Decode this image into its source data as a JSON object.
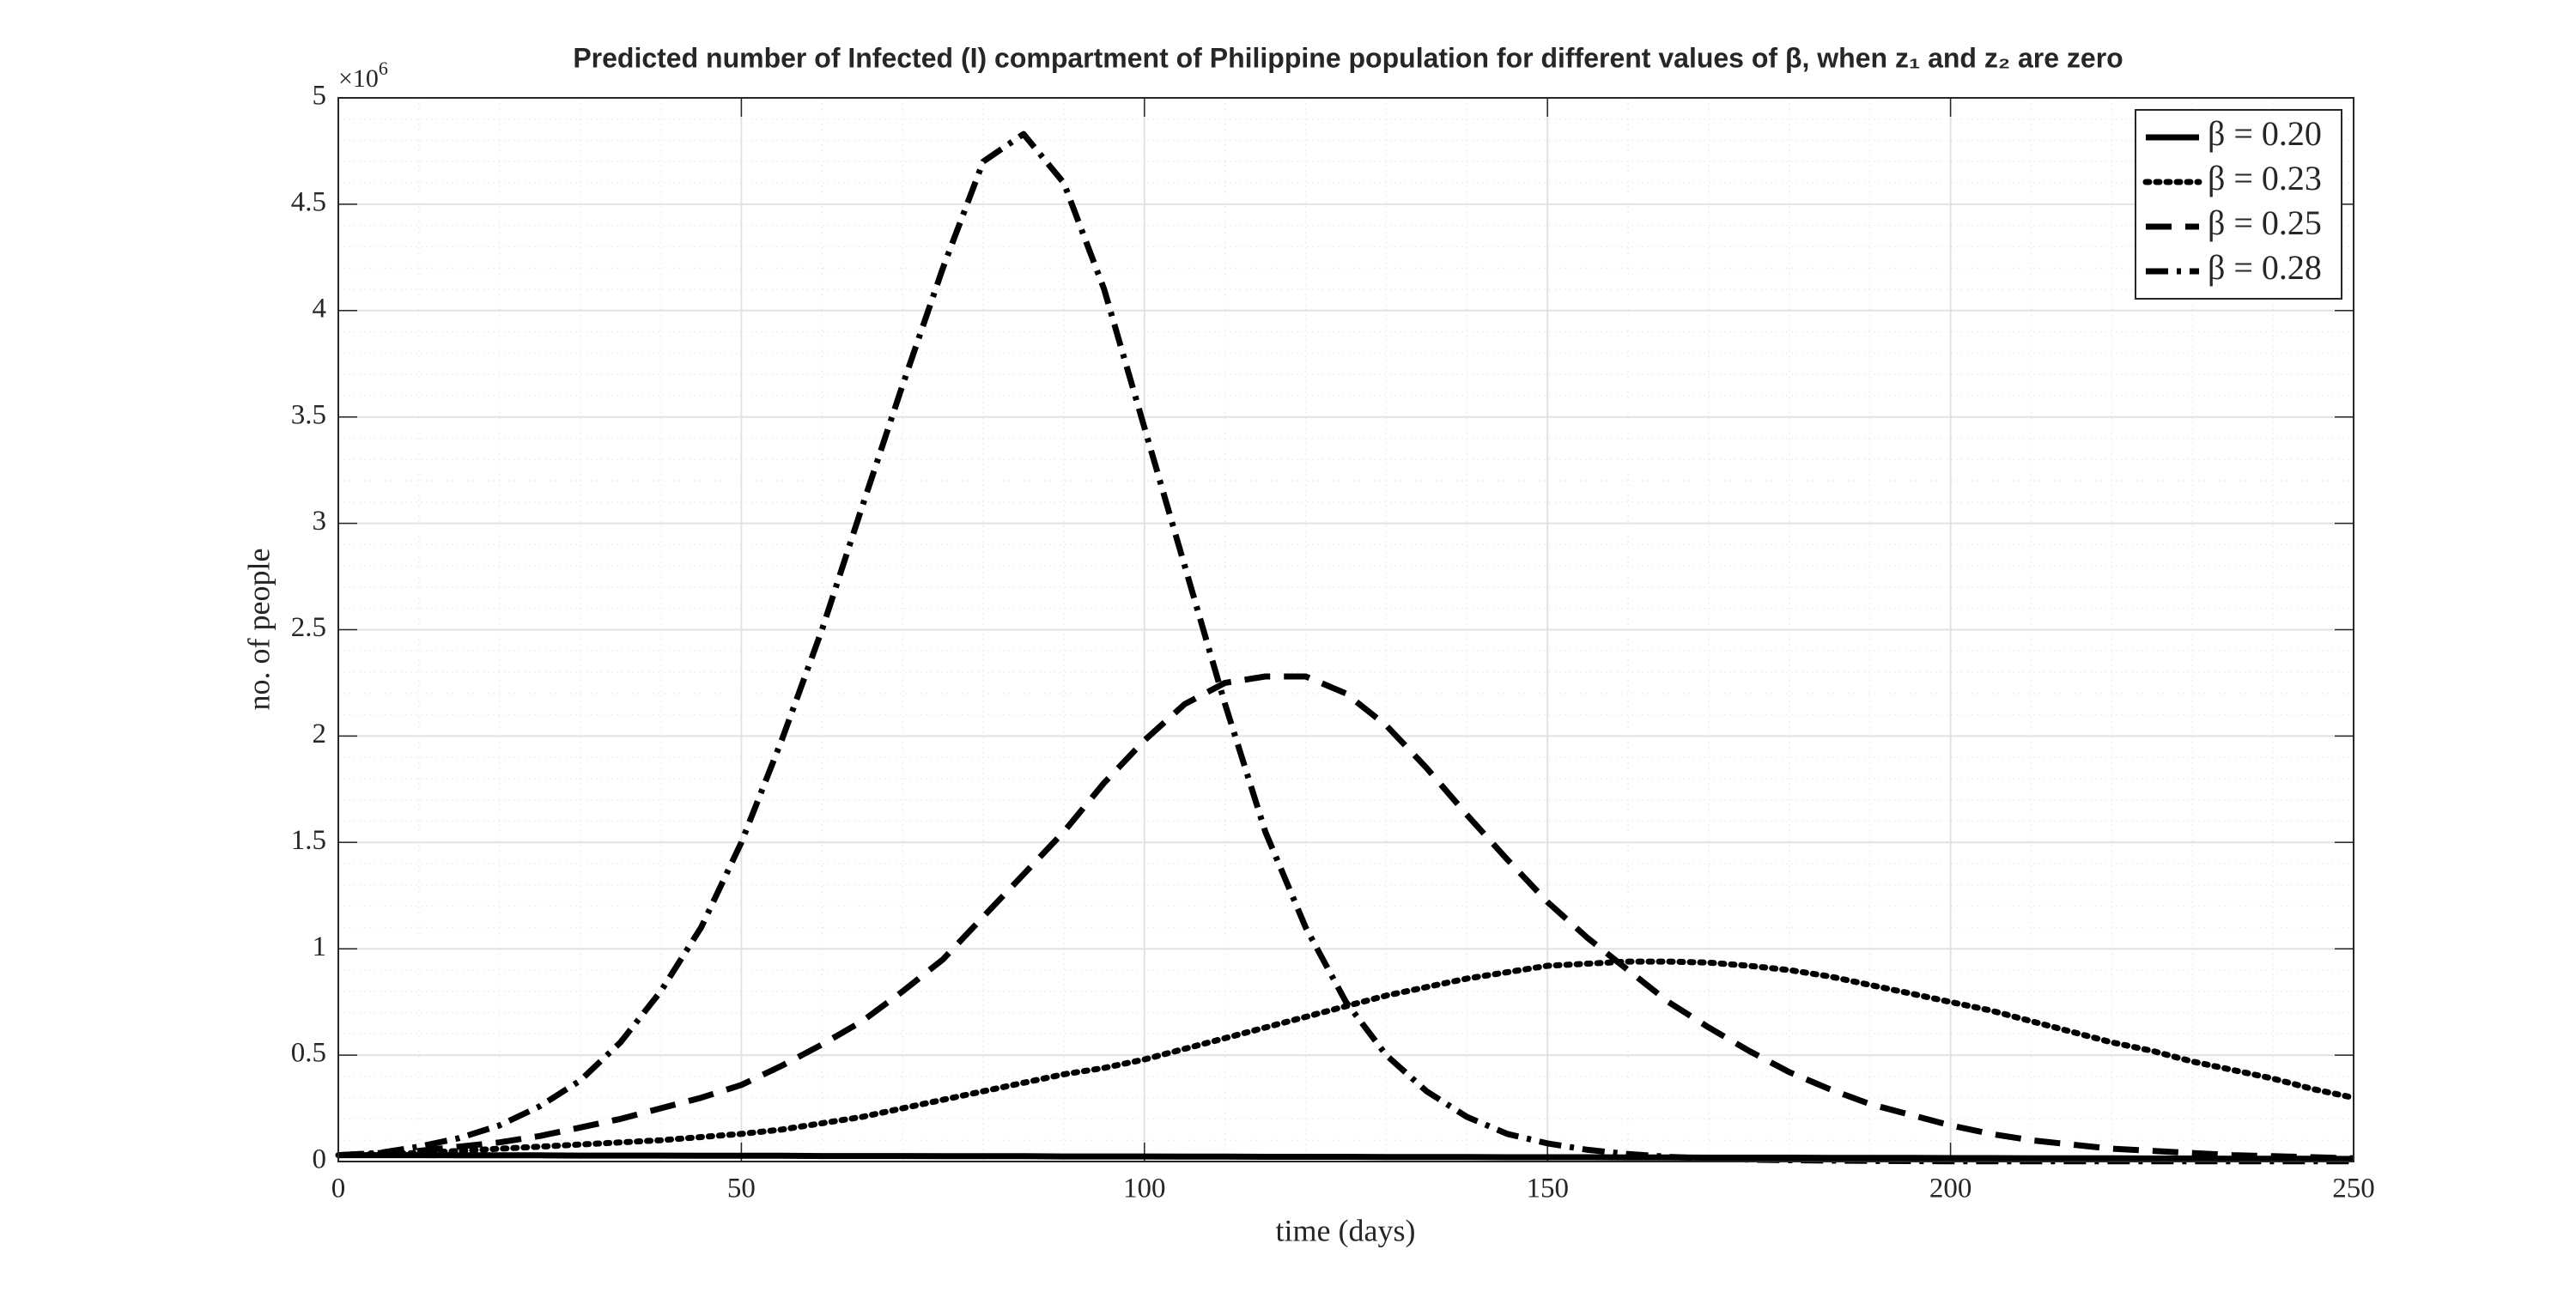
{
  "chart_data": {
    "type": "line",
    "title": "Predicted number of Infected (I) compartment of Philippine population for different values of β, when z₁  and z₂ are zero",
    "x_label": "time (days)",
    "y_label": "no. of people",
    "y_multiplier": {
      "base": "×10",
      "exponent": "6"
    },
    "x": [
      0,
      5,
      10,
      15,
      20,
      25,
      30,
      35,
      40,
      45,
      50,
      55,
      60,
      65,
      70,
      75,
      80,
      85,
      90,
      95,
      100,
      105,
      110,
      115,
      120,
      125,
      130,
      135,
      140,
      145,
      150,
      155,
      160,
      165,
      170,
      175,
      180,
      185,
      190,
      195,
      200,
      205,
      210,
      215,
      220,
      225,
      230,
      235,
      240,
      245,
      250
    ],
    "series": [
      {
        "name": "β = 0.20",
        "color": "#000000",
        "dash": "solid",
        "values": [
          0.03,
          0.03,
          0.03,
          0.029,
          0.029,
          0.029,
          0.028,
          0.028,
          0.028,
          0.027,
          0.027,
          0.027,
          0.026,
          0.026,
          0.026,
          0.025,
          0.025,
          0.025,
          0.024,
          0.024,
          0.024,
          0.023,
          0.023,
          0.022,
          0.022,
          0.022,
          0.021,
          0.021,
          0.021,
          0.02,
          0.02,
          0.02,
          0.019,
          0.019,
          0.018,
          0.018,
          0.018,
          0.017,
          0.017,
          0.017,
          0.016,
          0.016,
          0.015,
          0.015,
          0.015,
          0.014,
          0.014,
          0.013,
          0.013,
          0.013,
          0.012
        ]
      },
      {
        "name": "β = 0.23",
        "color": "#000000",
        "dash": "dotted",
        "values": [
          0.03,
          0.035,
          0.04,
          0.05,
          0.06,
          0.07,
          0.08,
          0.09,
          0.1,
          0.115,
          0.13,
          0.15,
          0.18,
          0.21,
          0.25,
          0.29,
          0.33,
          0.37,
          0.41,
          0.44,
          0.48,
          0.53,
          0.58,
          0.63,
          0.68,
          0.73,
          0.78,
          0.82,
          0.86,
          0.89,
          0.92,
          0.93,
          0.94,
          0.94,
          0.935,
          0.92,
          0.9,
          0.87,
          0.83,
          0.79,
          0.75,
          0.71,
          0.66,
          0.61,
          0.56,
          0.52,
          0.47,
          0.43,
          0.39,
          0.34,
          0.3
        ]
      },
      {
        "name": "β = 0.25",
        "color": "#000000",
        "dash": "dashed",
        "values": [
          0.03,
          0.04,
          0.05,
          0.07,
          0.09,
          0.12,
          0.16,
          0.2,
          0.25,
          0.3,
          0.36,
          0.45,
          0.55,
          0.66,
          0.8,
          0.95,
          1.15,
          1.35,
          1.55,
          1.78,
          1.98,
          2.15,
          2.25,
          2.28,
          2.28,
          2.2,
          2.05,
          1.85,
          1.63,
          1.42,
          1.22,
          1.05,
          0.9,
          0.75,
          0.63,
          0.52,
          0.42,
          0.34,
          0.27,
          0.22,
          0.17,
          0.13,
          0.1,
          0.08,
          0.06,
          0.05,
          0.04,
          0.03,
          0.025,
          0.02,
          0.015
        ]
      },
      {
        "name": "β = 0.28",
        "color": "#000000",
        "dash": "dashdot",
        "values": [
          0.03,
          0.04,
          0.07,
          0.11,
          0.17,
          0.26,
          0.38,
          0.56,
          0.8,
          1.1,
          1.5,
          1.98,
          2.5,
          3.08,
          3.65,
          4.2,
          4.7,
          4.83,
          4.6,
          4.1,
          3.45,
          2.8,
          2.15,
          1.55,
          1.1,
          0.75,
          0.5,
          0.33,
          0.21,
          0.13,
          0.085,
          0.055,
          0.035,
          0.022,
          0.014,
          0.009,
          0.006,
          0.004,
          0.003,
          0.002,
          0.001,
          0.001,
          0.001,
          0.001,
          0.001,
          0.001,
          0.001,
          0.001,
          0.001,
          0.001,
          0.001
        ]
      }
    ],
    "xlim": [
      0,
      250
    ],
    "xticks": [
      0,
      50,
      100,
      150,
      200,
      250
    ],
    "ylim": [
      0,
      5
    ],
    "yticks": [
      0,
      0.5,
      1,
      1.5,
      2,
      2.5,
      3,
      3.5,
      4,
      4.5,
      5
    ],
    "grid": true,
    "minor_grid": true,
    "legend": "top-right"
  }
}
